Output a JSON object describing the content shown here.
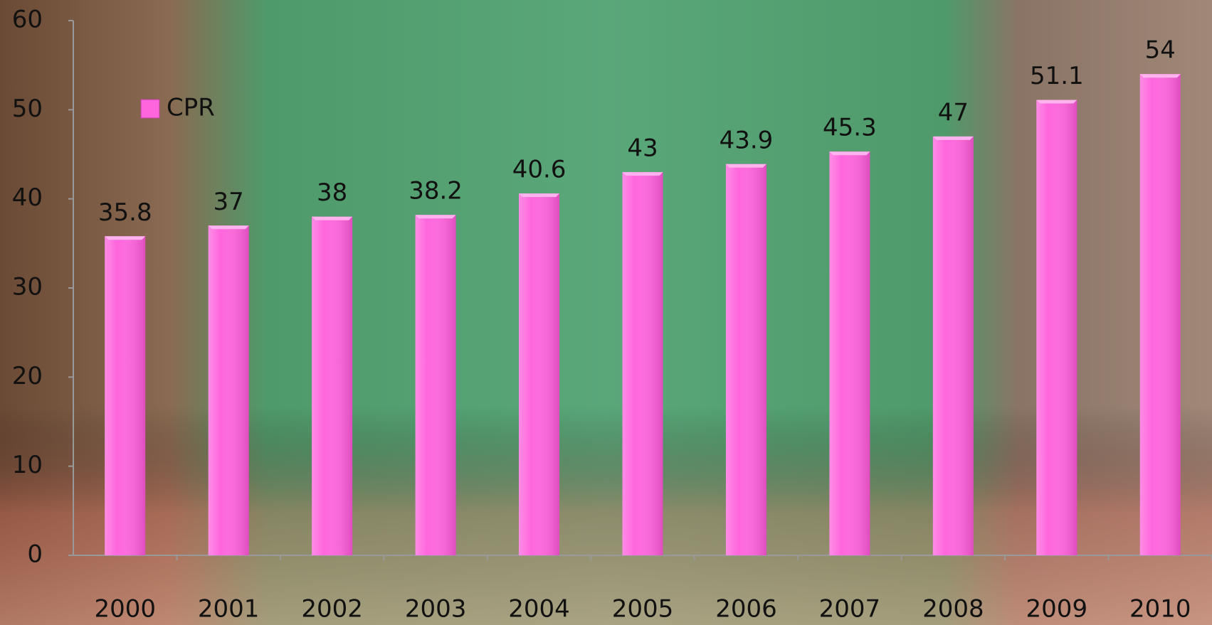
{
  "chart_data": {
    "type": "bar",
    "categories": [
      "2000",
      "2001",
      "2002",
      "2003",
      "2004",
      "2005",
      "2006",
      "2007",
      "2008",
      "2009",
      "2010"
    ],
    "series": [
      {
        "name": "CPR",
        "color": "#ff66dd",
        "values": [
          35.8,
          37,
          38,
          38.2,
          40.6,
          43,
          43.9,
          45.3,
          47,
          51.1,
          54
        ]
      }
    ],
    "ylim": [
      0,
      60
    ],
    "yticks": [
      0,
      10,
      20,
      30,
      40,
      50,
      60
    ],
    "grid": false,
    "legend": "top-left",
    "data_labels": true
  }
}
